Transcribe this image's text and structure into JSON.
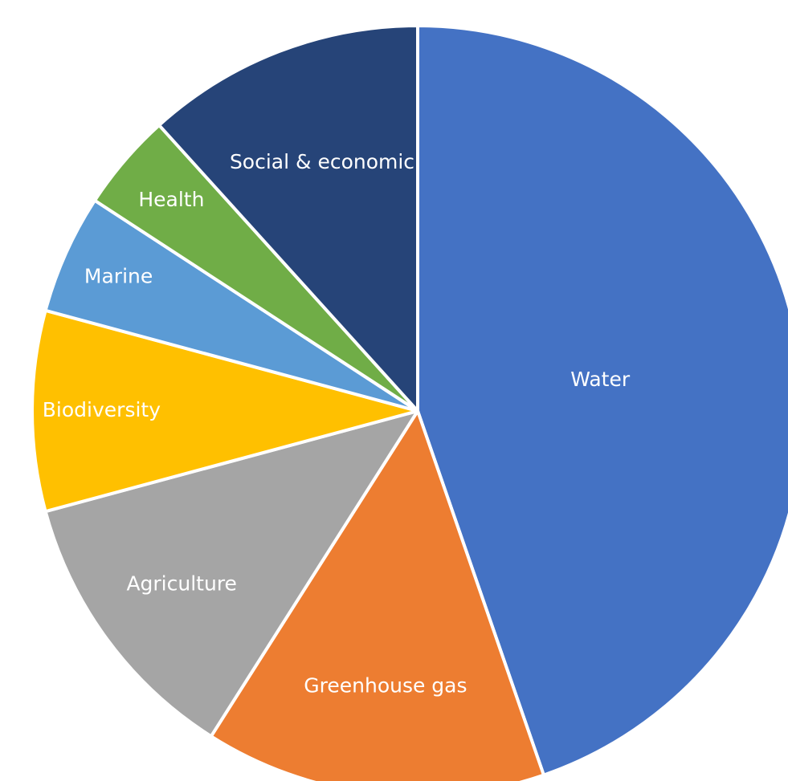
{
  "chart_data": {
    "type": "pie",
    "title": "",
    "start_angle_deg": 0,
    "direction": "clockwise",
    "legend": "none",
    "slices": [
      {
        "label": "Water",
        "value": 44.7,
        "color": "#4472C4"
      },
      {
        "label": "Greenhouse gas",
        "value": 14.3,
        "color": "#ED7D31"
      },
      {
        "label": "Agriculture",
        "value": 11.8,
        "color": "#A5A5A5"
      },
      {
        "label": "Biodiversity",
        "value": 8.4,
        "color": "#FFC000"
      },
      {
        "label": "Marine",
        "value": 5.0,
        "color": "#5B9BD5"
      },
      {
        "label": "Health",
        "value": 4.1,
        "color": "#70AD47"
      },
      {
        "label": "Social & economic",
        "value": 11.7,
        "color": "#264478"
      }
    ]
  }
}
